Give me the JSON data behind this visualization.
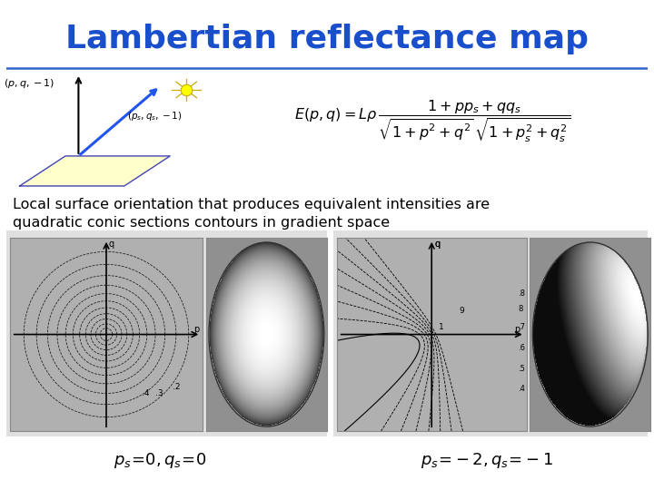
{
  "title": "Lambertian reflectance map",
  "title_color": "#1a4fcc",
  "title_fontsize": 26,
  "subtitle_line1": "Local surface orientation that produces equivalent intensities are",
  "subtitle_line2": "quadratic conic sections contours in gradient space",
  "subtitle_fontsize": 11.5,
  "label_ps0": "p_s=0,q_s=0",
  "label_ps2": "p_s=-2,q_s=-1",
  "caption_fontsize": 13,
  "bg_color": "#ffffff",
  "panel_bg_left": "#c8c8c8",
  "panel_bg_right": "#b8b8b8",
  "outer_panel_bg": "#e0e0e0",
  "title_line_color": "#3366cc"
}
